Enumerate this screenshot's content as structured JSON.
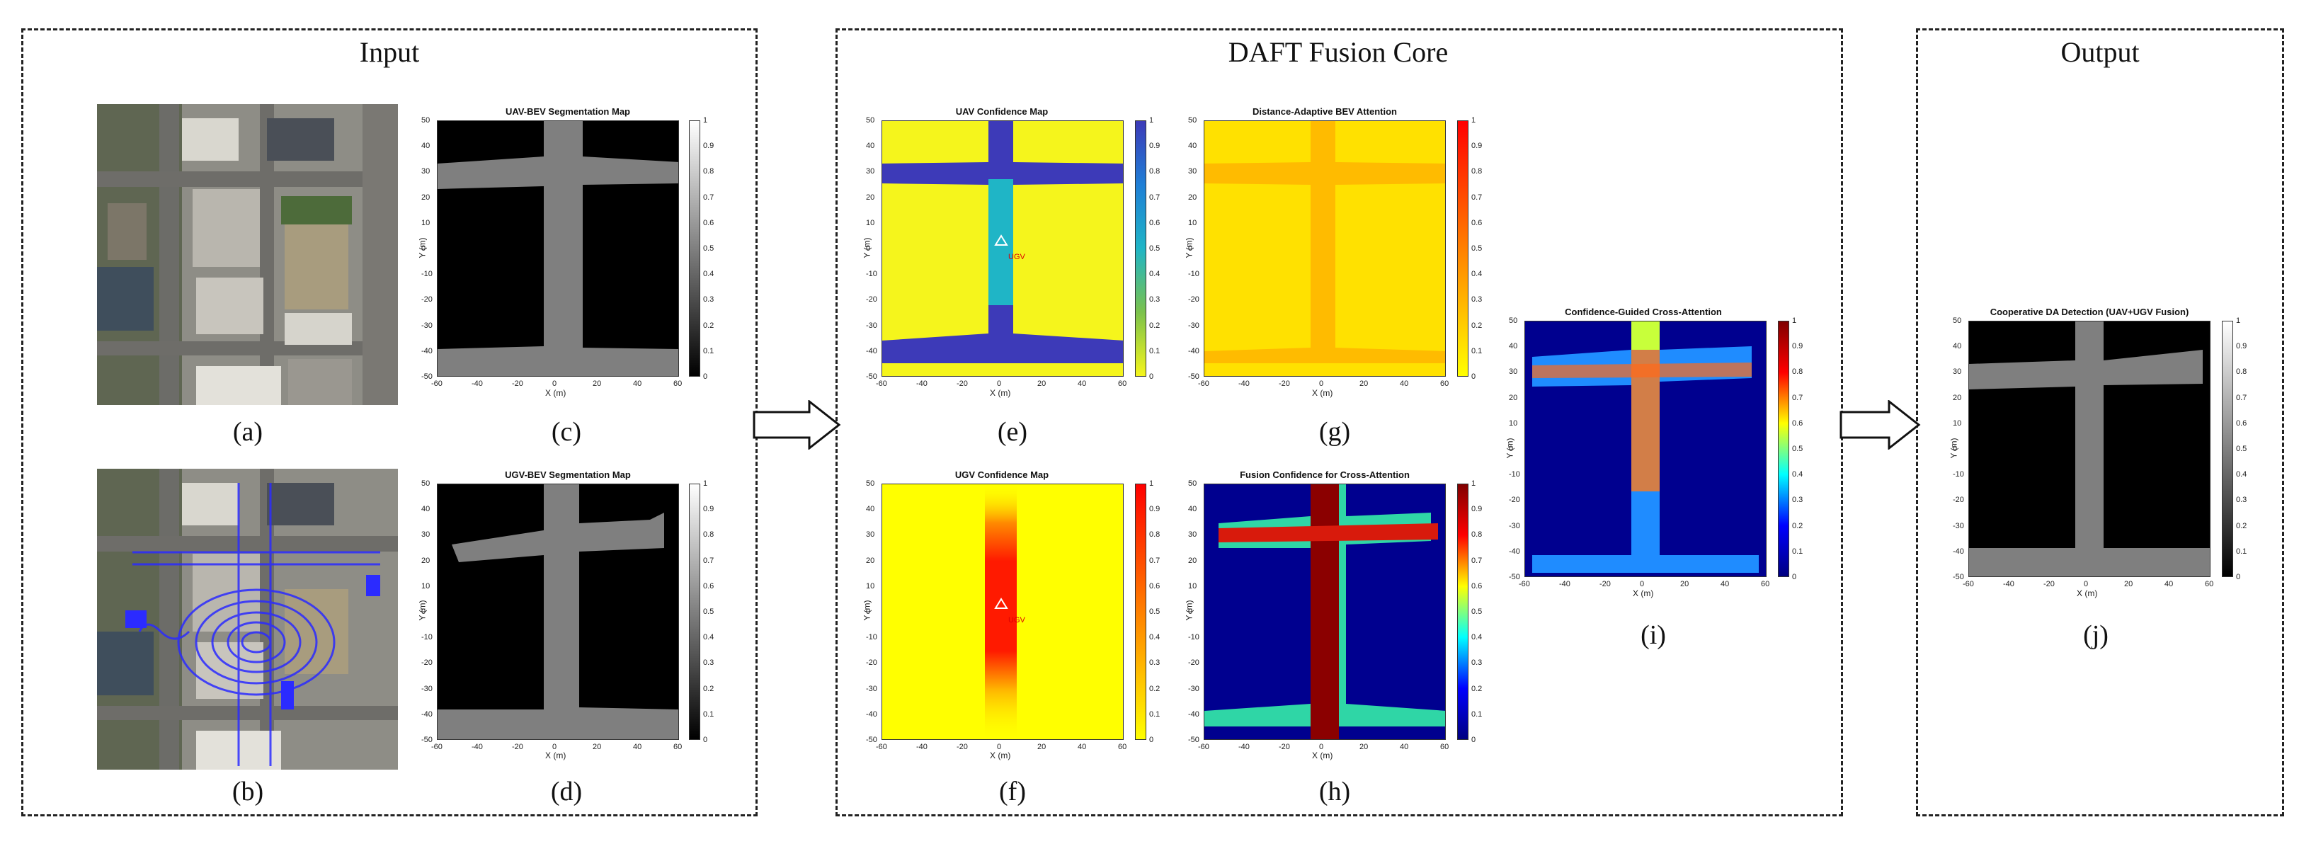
{
  "sections": {
    "input": "Input",
    "core": "DAFT Fusion Core",
    "output": "Output"
  },
  "panels": {
    "a": {
      "label": "(a)"
    },
    "b": {
      "label": "(b)"
    },
    "c": {
      "label": "(c)",
      "title": "UAV-BEV Segmentation Map",
      "colormap": "gray"
    },
    "d": {
      "label": "(d)",
      "title": "UGV-BEV Segmentation Map",
      "colormap": "gray"
    },
    "e": {
      "label": "(e)",
      "title": "UAV Confidence Map",
      "colormap": "parula",
      "marker": "UGV"
    },
    "f": {
      "label": "(f)",
      "title": "UGV Confidence Map",
      "colormap": "autumn",
      "marker": "UGV"
    },
    "g": {
      "label": "(g)",
      "title": "Distance-Adaptive BEV Attention",
      "colormap": "autumn"
    },
    "h": {
      "label": "(h)",
      "title": "Fusion Confidence for Cross-Attention",
      "colormap": "jet"
    },
    "i": {
      "label": "(i)",
      "title": "Confidence-Guided Cross-Attention",
      "colormap": "jet"
    },
    "j": {
      "label": "(j)",
      "title": "Cooperative DA Detection (UAV+UGV Fusion)",
      "colormap": "gray"
    }
  },
  "axes": {
    "xlabel": "X (m)",
    "ylabel": "Y (m)",
    "xticks": [
      "-60",
      "-40",
      "-20",
      "0",
      "20",
      "40",
      "60"
    ],
    "yticks": [
      "50",
      "40",
      "30",
      "20",
      "10",
      "0",
      "-10",
      "-20",
      "-30",
      "-40",
      "-50"
    ],
    "cbar_ticks": [
      "1",
      "0.9",
      "0.8",
      "0.7",
      "0.6",
      "0.5",
      "0.4",
      "0.3",
      "0.2",
      "0.1",
      "0"
    ]
  },
  "colors": {
    "road_gray": "#7f7f7f",
    "background_black": "#000000",
    "parula_yellow": "#f5f51c",
    "parula_blue": "#3d3ab8",
    "parula_cyan": "#1fb5c6",
    "autumn_yellow": "#ffff00",
    "autumn_orange": "#ffb400",
    "autumn_red": "#ff1a00",
    "jet_darkblue": "#00008f",
    "jet_darkred": "#8b0000"
  }
}
